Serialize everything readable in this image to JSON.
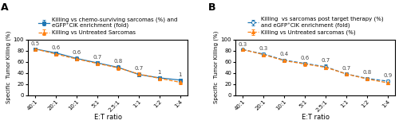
{
  "chart_data": [
    {
      "type": "line",
      "title": "A",
      "x_label": "E:T ratio",
      "y_label": "Specific  Tumor Killing (%)",
      "categories": [
        "40:1",
        "20:1",
        "10:1",
        "5:1",
        "2.5:1",
        "1:1",
        "1:2",
        "1:4"
      ],
      "ylim": [
        0,
        100
      ],
      "yticks": [
        0,
        20,
        40,
        60,
        80,
        100
      ],
      "legend": "upper center",
      "series": [
        {
          "name": "Killing vs chemo-surviving sarcomas (%) and\neGFP⁺CIK enrichment (fold)",
          "values": [
            83,
            76,
            66,
            58,
            50,
            37,
            31,
            27
          ],
          "errors": [
            2.5,
            2.5,
            3,
            3,
            4,
            3.5,
            2.5,
            3
          ],
          "marker": "square",
          "line_style": "solid",
          "annotations": [
            "0.5",
            "0.6",
            "0.6",
            "0.7",
            "0.8",
            "0.7",
            "1",
            "1"
          ]
        },
        {
          "name": "Killing vs Untreated Sarcomas",
          "values": [
            83,
            74,
            65,
            57,
            49,
            38,
            30,
            23
          ],
          "errors": [
            2.5,
            2.5,
            3,
            3,
            4,
            3.5,
            2.5,
            3
          ],
          "marker": "triangle",
          "line_style": "dashed"
        }
      ]
    },
    {
      "type": "line",
      "title": "B",
      "x_label": "E:T ratio",
      "y_label": "Specific  Tumor Killing (%)",
      "categories": [
        "40:1",
        "20:1",
        "10:1",
        "5:1",
        "2.5:1",
        "1:1",
        "1:2",
        "1:4"
      ],
      "ylim": [
        0,
        100
      ],
      "yticks": [
        0,
        20,
        40,
        60,
        80,
        100
      ],
      "legend": "upper center",
      "series": [
        {
          "name": "Killing  vs sarcomas post target therapy (%)\nand eGFP⁺CIK enrichment (fold)",
          "values": [
            82,
            74,
            63,
            57,
            51,
            38,
            30,
            25
          ],
          "errors": [
            2.5,
            2.5,
            3,
            3,
            4,
            3.5,
            3,
            3
          ],
          "marker": "open_circle",
          "line_style": "dashed",
          "annotations": [
            "0.3",
            "0.3",
            "0.4",
            "0.6",
            "0.7",
            "0.7",
            "0.8",
            "0.9"
          ]
        },
        {
          "name": "Killing vs Untreated sarcomas (%)",
          "values": [
            82,
            73,
            62,
            56,
            50,
            38,
            29,
            22
          ],
          "errors": [
            2.5,
            2.5,
            3,
            3,
            4,
            3.5,
            3,
            3
          ],
          "marker": "triangle",
          "line_style": "dashed"
        }
      ]
    }
  ]
}
